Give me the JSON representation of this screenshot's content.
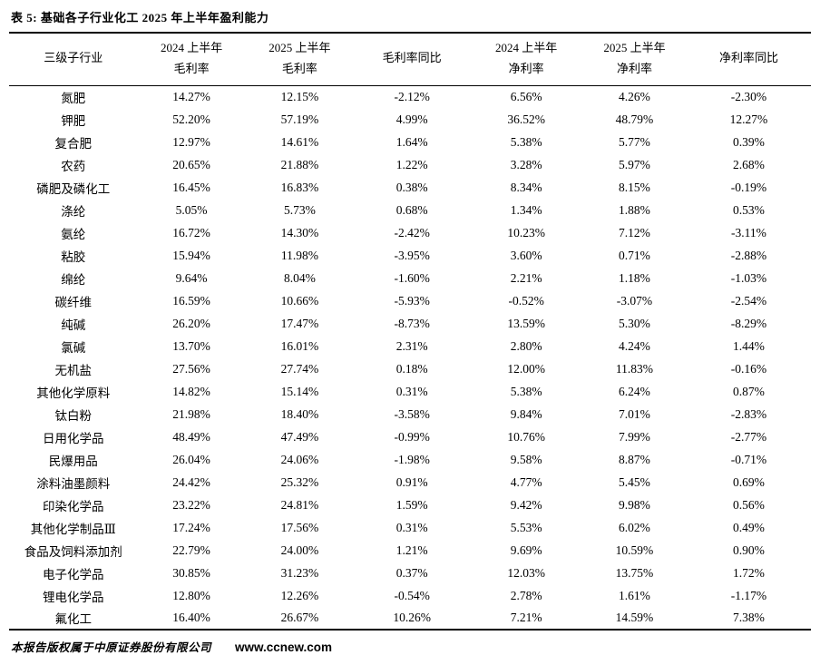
{
  "title": "表 5: 基础各子行业化工 2025 年上半年盈利能力",
  "table": {
    "columns": [
      {
        "label": "三级子行业"
      },
      {
        "line1": "2024 上半年",
        "line2": "毛利率"
      },
      {
        "line1": "2025 上半年",
        "line2": "毛利率"
      },
      {
        "label": "毛利率同比"
      },
      {
        "line1": "2024 上半年",
        "line2": "净利率"
      },
      {
        "line1": "2025 上半年",
        "line2": "净利率"
      },
      {
        "label": "净利率同比"
      }
    ],
    "rows": [
      [
        "氮肥",
        "14.27%",
        "12.15%",
        "-2.12%",
        "6.56%",
        "4.26%",
        "-2.30%"
      ],
      [
        "钾肥",
        "52.20%",
        "57.19%",
        "4.99%",
        "36.52%",
        "48.79%",
        "12.27%"
      ],
      [
        "复合肥",
        "12.97%",
        "14.61%",
        "1.64%",
        "5.38%",
        "5.77%",
        "0.39%"
      ],
      [
        "农药",
        "20.65%",
        "21.88%",
        "1.22%",
        "3.28%",
        "5.97%",
        "2.68%"
      ],
      [
        "磷肥及磷化工",
        "16.45%",
        "16.83%",
        "0.38%",
        "8.34%",
        "8.15%",
        "-0.19%"
      ],
      [
        "涤纶",
        "5.05%",
        "5.73%",
        "0.68%",
        "1.34%",
        "1.88%",
        "0.53%"
      ],
      [
        "氨纶",
        "16.72%",
        "14.30%",
        "-2.42%",
        "10.23%",
        "7.12%",
        "-3.11%"
      ],
      [
        "粘胶",
        "15.94%",
        "11.98%",
        "-3.95%",
        "3.60%",
        "0.71%",
        "-2.88%"
      ],
      [
        "绵纶",
        "9.64%",
        "8.04%",
        "-1.60%",
        "2.21%",
        "1.18%",
        "-1.03%"
      ],
      [
        "碳纤维",
        "16.59%",
        "10.66%",
        "-5.93%",
        "-0.52%",
        "-3.07%",
        "-2.54%"
      ],
      [
        "纯碱",
        "26.20%",
        "17.47%",
        "-8.73%",
        "13.59%",
        "5.30%",
        "-8.29%"
      ],
      [
        "氯碱",
        "13.70%",
        "16.01%",
        "2.31%",
        "2.80%",
        "4.24%",
        "1.44%"
      ],
      [
        "无机盐",
        "27.56%",
        "27.74%",
        "0.18%",
        "12.00%",
        "11.83%",
        "-0.16%"
      ],
      [
        "其他化学原料",
        "14.82%",
        "15.14%",
        "0.31%",
        "5.38%",
        "6.24%",
        "0.87%"
      ],
      [
        "钛白粉",
        "21.98%",
        "18.40%",
        "-3.58%",
        "9.84%",
        "7.01%",
        "-2.83%"
      ],
      [
        "日用化学品",
        "48.49%",
        "47.49%",
        "-0.99%",
        "10.76%",
        "7.99%",
        "-2.77%"
      ],
      [
        "民爆用品",
        "26.04%",
        "24.06%",
        "-1.98%",
        "9.58%",
        "8.87%",
        "-0.71%"
      ],
      [
        "涂料油墨颜料",
        "24.42%",
        "25.32%",
        "0.91%",
        "4.77%",
        "5.45%",
        "0.69%"
      ],
      [
        "印染化学品",
        "23.22%",
        "24.81%",
        "1.59%",
        "9.42%",
        "9.98%",
        "0.56%"
      ],
      [
        "其他化学制品Ⅲ",
        "17.24%",
        "17.56%",
        "0.31%",
        "5.53%",
        "6.02%",
        "0.49%"
      ],
      [
        "食品及饲料添加剂",
        "22.79%",
        "24.00%",
        "1.21%",
        "9.69%",
        "10.59%",
        "0.90%"
      ],
      [
        "电子化学品",
        "30.85%",
        "31.23%",
        "0.37%",
        "12.03%",
        "13.75%",
        "1.72%"
      ],
      [
        "锂电化学品",
        "12.80%",
        "12.26%",
        "-0.54%",
        "2.78%",
        "1.61%",
        "-1.17%"
      ],
      [
        "氟化工",
        "16.40%",
        "26.67%",
        "10.26%",
        "7.21%",
        "14.59%",
        "7.38%"
      ]
    ]
  },
  "footer": {
    "copyright": "本报告版权属于中原证券股份有限公司",
    "website": "www.ccnew.com"
  },
  "chart_data": {
    "type": "table",
    "title": "表 5: 基础各子行业化工 2025 年上半年盈利能力",
    "columns": [
      "三级子行业",
      "2024 上半年毛利率",
      "2025 上半年毛利率",
      "毛利率同比",
      "2024 上半年净利率",
      "2025 上半年净利率",
      "净利率同比"
    ]
  }
}
